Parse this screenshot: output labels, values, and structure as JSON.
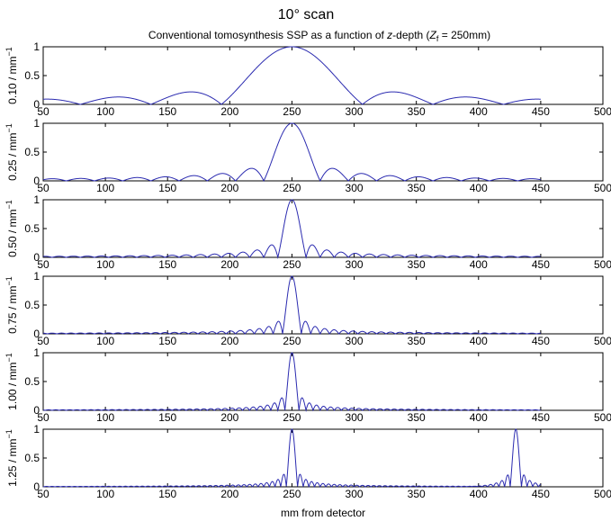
{
  "figure": {
    "title": "10° scan",
    "subtitle_prefix": "Conventional tomosynthesis SSP as a function of ",
    "subtitle_italic_z": "z",
    "subtitle_mid": "-depth (",
    "subtitle_italic_Z": "Z",
    "subtitle_subscript": "f",
    "subtitle_suffix": " = 250mm)",
    "xlabel": "mm from detector",
    "line_color": "#2b2bb0"
  },
  "chart_data": [
    {
      "type": "line",
      "ylabel": "0.10 / mm",
      "ylabel_sup": "−1",
      "frequency_per_mm": 0.1,
      "focal_depth_mm": 250,
      "scan_angle_deg": 10,
      "x_range": [
        50,
        450
      ],
      "xlim": [
        50,
        500
      ],
      "ylim": [
        0,
        1
      ],
      "xticks": [
        "50",
        "100",
        "150",
        "200",
        "250",
        "300",
        "350",
        "400",
        "450",
        "500"
      ],
      "yticks": [
        "0",
        "0.5",
        "1"
      ],
      "peaks": [
        {
          "x": 250,
          "y": 1
        }
      ]
    },
    {
      "type": "line",
      "ylabel": "0.25 / mm",
      "ylabel_sup": "−1",
      "frequency_per_mm": 0.25,
      "focal_depth_mm": 250,
      "scan_angle_deg": 10,
      "x_range": [
        50,
        450
      ],
      "xlim": [
        50,
        500
      ],
      "ylim": [
        0,
        1
      ],
      "xticks": [
        "50",
        "100",
        "150",
        "200",
        "250",
        "300",
        "350",
        "400",
        "450",
        "500"
      ],
      "yticks": [
        "0",
        "0.5",
        "1"
      ],
      "peaks": [
        {
          "x": 250,
          "y": 1
        }
      ]
    },
    {
      "type": "line",
      "ylabel": "0.50 / mm",
      "ylabel_sup": "−1",
      "frequency_per_mm": 0.5,
      "focal_depth_mm": 250,
      "scan_angle_deg": 10,
      "x_range": [
        50,
        450
      ],
      "xlim": [
        50,
        500
      ],
      "ylim": [
        0,
        1
      ],
      "xticks": [
        "50",
        "100",
        "150",
        "200",
        "250",
        "300",
        "350",
        "400",
        "450",
        "500"
      ],
      "yticks": [
        "0",
        "0.5",
        "1"
      ],
      "peaks": [
        {
          "x": 250,
          "y": 1
        }
      ]
    },
    {
      "type": "line",
      "ylabel": "0.75 / mm",
      "ylabel_sup": "−1",
      "frequency_per_mm": 0.75,
      "focal_depth_mm": 250,
      "scan_angle_deg": 10,
      "x_range": [
        50,
        450
      ],
      "xlim": [
        50,
        500
      ],
      "ylim": [
        0,
        1
      ],
      "xticks": [
        "50",
        "100",
        "150",
        "200",
        "250",
        "300",
        "350",
        "400",
        "450",
        "500"
      ],
      "yticks": [
        "0",
        "0.5",
        "1"
      ],
      "peaks": [
        {
          "x": 250,
          "y": 1
        }
      ]
    },
    {
      "type": "line",
      "ylabel": "1.00 / mm",
      "ylabel_sup": "−1",
      "frequency_per_mm": 1.0,
      "focal_depth_mm": 250,
      "scan_angle_deg": 10,
      "x_range": [
        50,
        450
      ],
      "xlim": [
        50,
        500
      ],
      "ylim": [
        0,
        1
      ],
      "xticks": [
        "50",
        "100",
        "150",
        "200",
        "250",
        "300",
        "350",
        "400",
        "450",
        "500"
      ],
      "yticks": [
        "0",
        "0.5",
        "1"
      ],
      "peaks": [
        {
          "x": 250,
          "y": 1
        }
      ]
    },
    {
      "type": "line",
      "ylabel": "1.25 / mm",
      "ylabel_sup": "−1",
      "frequency_per_mm": 1.25,
      "focal_depth_mm": 250,
      "scan_angle_deg": 10,
      "x_range": [
        50,
        450
      ],
      "xlim": [
        50,
        500
      ],
      "ylim": [
        0,
        1
      ],
      "xticks": [
        "50",
        "100",
        "150",
        "200",
        "250",
        "300",
        "350",
        "400",
        "450",
        "500"
      ],
      "yticks": [
        "0",
        "0.5",
        "1"
      ],
      "peaks": [
        {
          "x": 250,
          "y": 1
        },
        {
          "x": 430,
          "y": 1
        }
      ]
    }
  ]
}
